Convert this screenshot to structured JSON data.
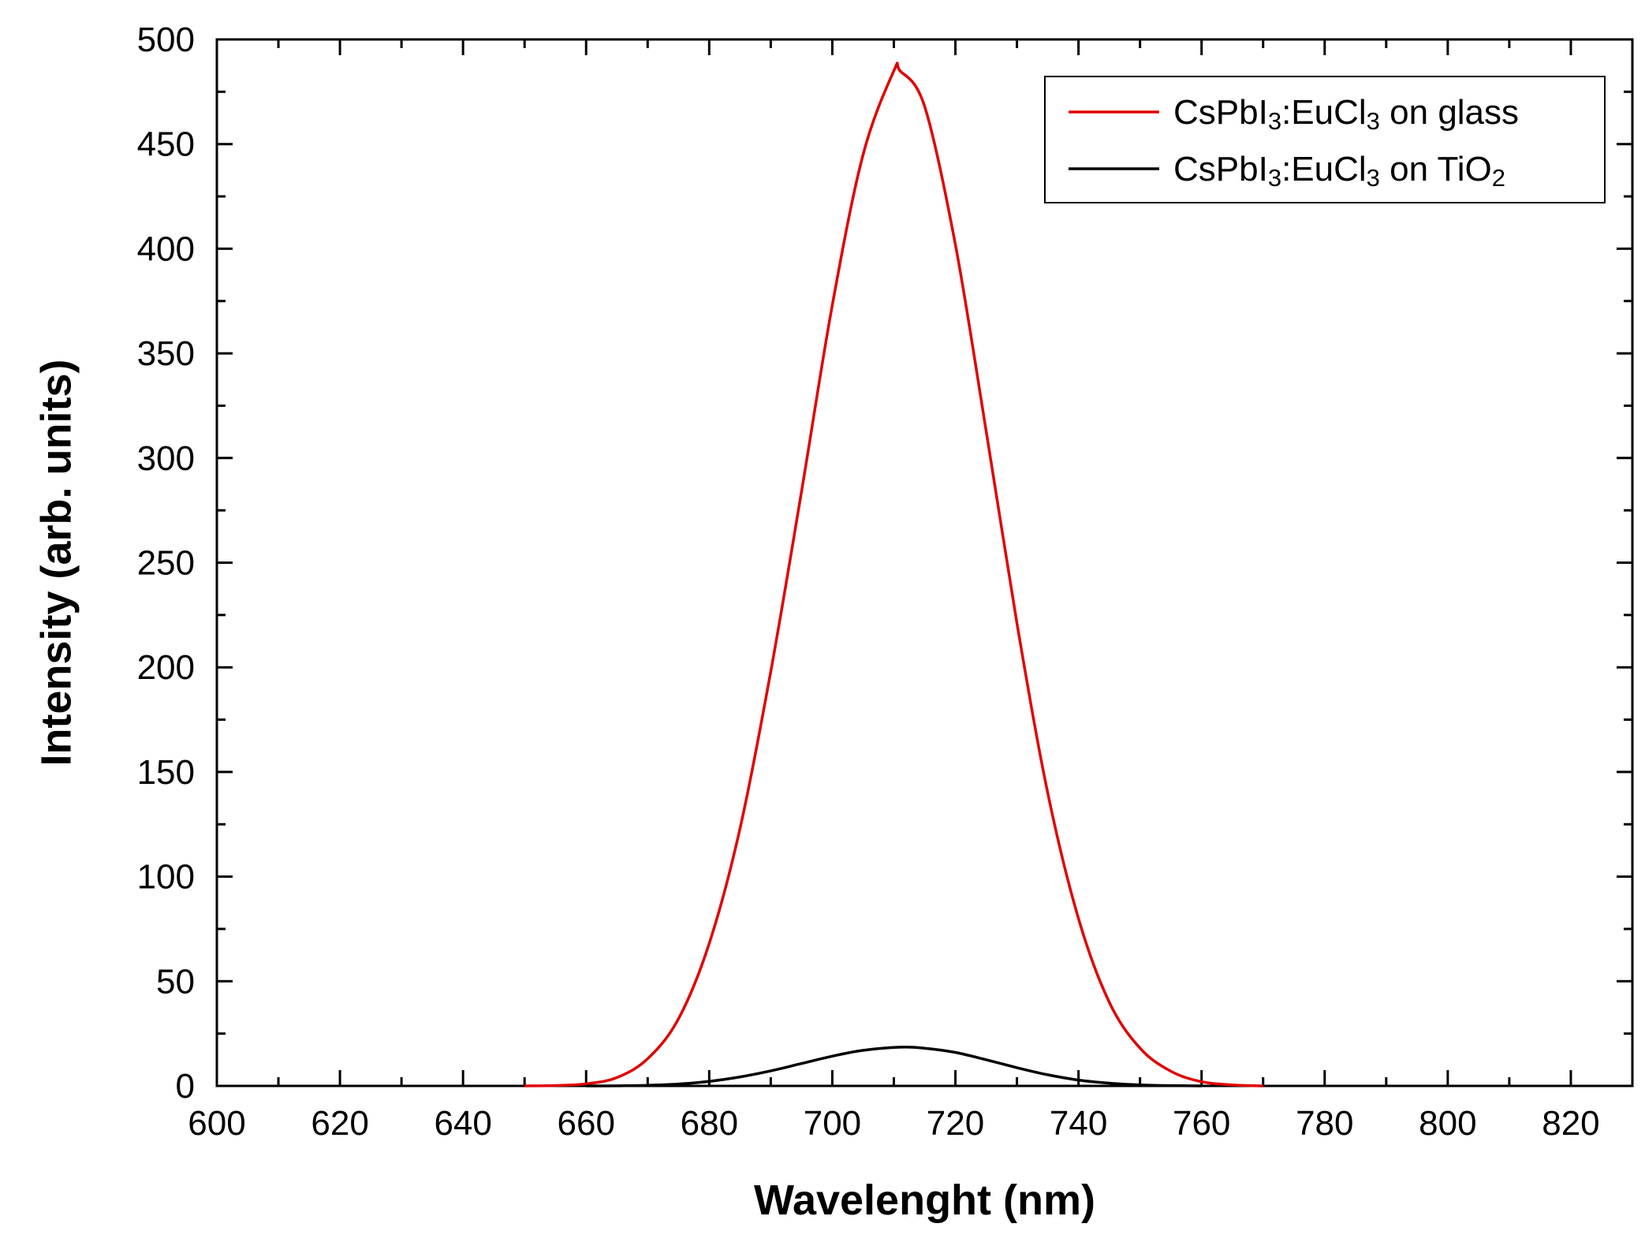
{
  "chart_data": {
    "type": "line",
    "title": "",
    "xlabel": "Wavelenght (nm)",
    "ylabel": "Intensity (arb. units)",
    "xlim": [
      600,
      830
    ],
    "ylim": [
      0,
      500
    ],
    "x_ticks": [
      600,
      620,
      640,
      660,
      680,
      700,
      720,
      740,
      760,
      780,
      800,
      820
    ],
    "y_ticks": [
      0,
      50,
      100,
      150,
      200,
      250,
      300,
      350,
      400,
      450,
      500
    ],
    "grid": false,
    "legend_position": "top-right",
    "series": [
      {
        "name": "CsPbI3:EuCl3 on glass",
        "legend": {
          "base": "CsPbI",
          "sub1": "3",
          "mid": ":EuCl",
          "sub2": "3",
          "tail": " on glass"
        },
        "color": "#e00000",
        "x": [
          650,
          655,
          660,
          665,
          670,
          675,
          680,
          685,
          690,
          695,
          700,
          705,
          710,
          711,
          715,
          720,
          725,
          730,
          735,
          740,
          745,
          750,
          755,
          760,
          765,
          770
        ],
        "y": [
          0,
          0.2,
          1,
          4,
          13,
          32,
          68,
          123,
          198,
          284,
          373,
          445,
          485,
          485,
          468,
          402,
          313,
          221,
          140,
          80,
          40,
          18,
          7,
          2,
          0.5,
          0
        ]
      },
      {
        "name": "CsPbI3:EuCl3 on TiO2",
        "legend": {
          "base": "CsPbI",
          "sub1": "3",
          "mid": ":EuCl",
          "sub2": "3",
          "tail": " on TiO",
          "sub3": "2"
        },
        "color": "#000000",
        "x": [
          660,
          665,
          670,
          675,
          680,
          685,
          690,
          695,
          700,
          705,
          711,
          715,
          720,
          725,
          730,
          735,
          740,
          745,
          750,
          755,
          760
        ],
        "y": [
          0,
          0.05,
          0.3,
          0.9,
          2.2,
          4.3,
          7.2,
          10.7,
          14.2,
          17,
          18.5,
          18,
          16,
          12.5,
          8.7,
          5.3,
          2.8,
          1.3,
          0.5,
          0.15,
          0
        ]
      }
    ]
  }
}
